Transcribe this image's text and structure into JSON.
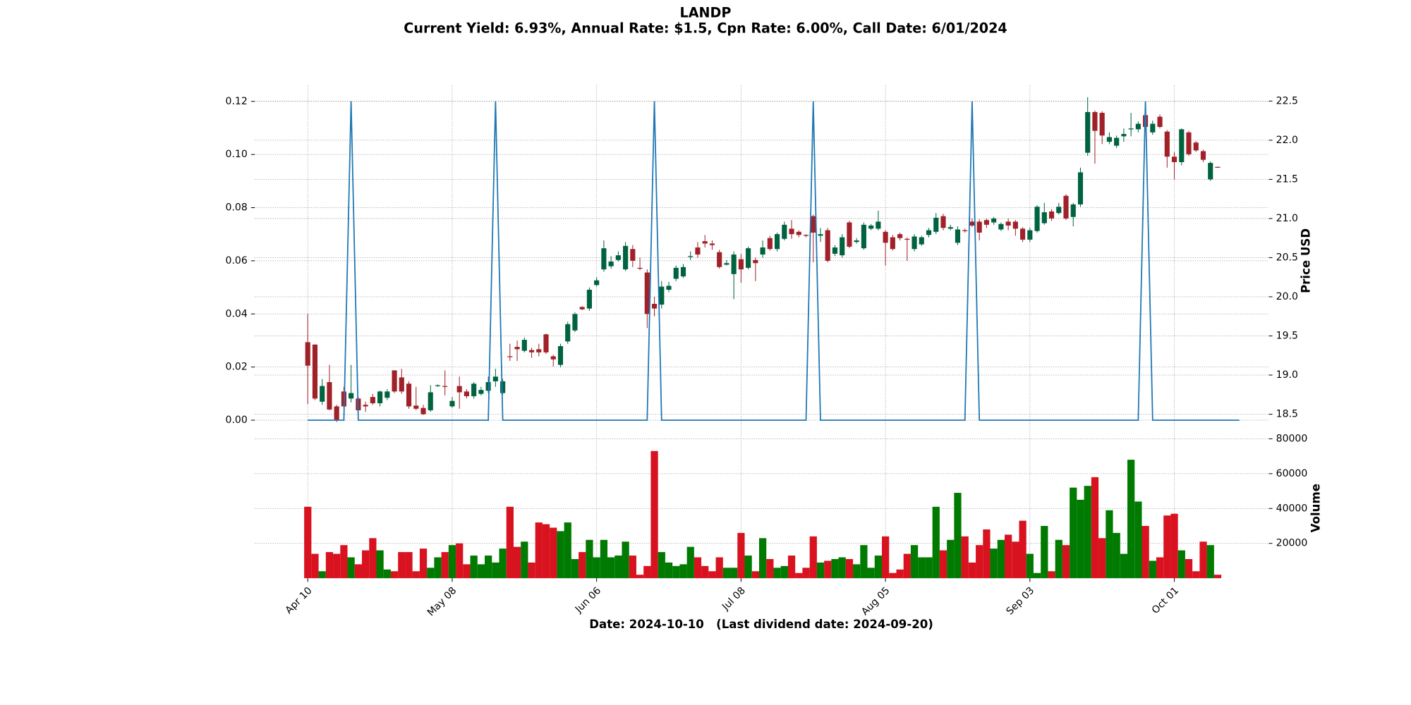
{
  "chart_data": {
    "type": "candlestick",
    "title": "LANDP",
    "subtitle": "Current Yield: 6.93%, Annual Rate: $1.5, Cpn Rate: 6.00%, Call Date: 6/01/2024",
    "x_label": "Date: 2024-10-10   (Last dividend date: 2024-09-20)",
    "y2_label": "Price USD",
    "volume_label": "Volume",
    "grid": true,
    "categories": [
      "Apr 10",
      null,
      null,
      null,
      null,
      null,
      null,
      null,
      null,
      null,
      null,
      null,
      null,
      null,
      null,
      null,
      null,
      null,
      null,
      null,
      "May 08",
      null,
      null,
      null,
      null,
      null,
      null,
      null,
      null,
      null,
      null,
      null,
      null,
      null,
      null,
      null,
      null,
      null,
      null,
      null,
      "Jun 06",
      null,
      null,
      null,
      null,
      null,
      null,
      null,
      null,
      null,
      null,
      null,
      null,
      null,
      null,
      null,
      null,
      null,
      null,
      null,
      "Jul 08",
      null,
      null,
      null,
      null,
      null,
      null,
      null,
      null,
      null,
      null,
      null,
      null,
      null,
      null,
      null,
      null,
      null,
      null,
      null,
      "Aug 05",
      null,
      null,
      null,
      null,
      null,
      null,
      null,
      null,
      null,
      null,
      null,
      null,
      null,
      null,
      null,
      null,
      null,
      null,
      null,
      "Sep 03",
      null,
      null,
      null,
      null,
      null,
      null,
      null,
      null,
      null,
      null,
      null,
      null,
      null,
      null,
      null,
      null,
      null,
      null,
      null,
      "Oct 01",
      null,
      null,
      null,
      null,
      null,
      null
    ],
    "open": [
      19.42,
      19.39,
      18.66,
      18.91,
      18.6,
      18.79,
      18.7,
      18.7,
      18.62,
      18.72,
      18.64,
      18.71,
      19.06,
      18.97,
      18.89,
      18.61,
      18.58,
      18.55,
      18.86,
      18.86,
      18.6,
      18.86,
      18.79,
      18.73,
      18.76,
      18.8,
      18.92,
      18.77,
      19.24,
      19.36,
      19.31,
      19.32,
      19.33,
      19.52,
      19.24,
      19.13,
      19.43,
      19.57,
      19.87,
      19.85,
      20.15,
      20.35,
      20.39,
      20.47,
      20.35,
      20.61,
      20.37,
      20.31,
      19.91,
      19.9,
      20.09,
      20.23,
      20.26,
      20.51,
      20.63,
      20.71,
      20.68,
      20.57,
      20.41,
      20.29,
      20.48,
      20.37,
      20.47,
      20.54,
      20.75,
      20.61,
      20.74,
      20.87,
      20.83,
      20.79,
      21.03,
      20.78,
      20.85,
      20.55,
      20.53,
      20.95,
      20.7,
      20.62,
      20.87,
      20.87,
      20.83,
      20.76,
      20.8,
      20.74,
      20.61,
      20.67,
      20.79,
      20.83,
      21.03,
      20.87,
      20.69,
      20.85,
      20.96,
      20.96,
      20.98,
      20.95,
      20.86,
      20.96,
      20.96,
      20.87,
      20.73,
      20.84,
      20.94,
      21.09,
      21.07,
      21.29,
      21.02,
      21.18,
      21.84,
      22.36,
      22.35,
      21.98,
      21.93,
      22.05,
      22.14,
      22.14,
      22.32,
      22.1,
      22.3,
      22.11,
      21.79,
      21.72,
      22.1,
      21.97,
      21.86,
      21.5,
      21.66
    ],
    "high": [
      19.78,
      19.39,
      18.95,
      19.13,
      18.62,
      18.85,
      19.13,
      18.72,
      18.66,
      18.76,
      18.8,
      18.82,
      19.06,
      19.08,
      18.92,
      18.85,
      18.62,
      18.87,
      18.88,
      19.06,
      18.72,
      18.98,
      18.82,
      18.91,
      18.85,
      18.98,
      19.08,
      18.95,
      19.4,
      19.44,
      19.48,
      19.35,
      19.4,
      19.53,
      19.26,
      19.4,
      19.68,
      19.8,
      19.88,
      20.12,
      20.25,
      20.72,
      20.52,
      20.58,
      20.7,
      20.66,
      20.5,
      20.35,
      20.0,
      20.2,
      20.19,
      20.4,
      20.42,
      20.58,
      20.7,
      20.79,
      20.72,
      20.6,
      20.47,
      20.58,
      20.55,
      20.64,
      20.5,
      20.72,
      20.78,
      20.82,
      20.96,
      20.98,
      20.85,
      20.8,
      21.05,
      20.88,
      20.88,
      20.66,
      20.8,
      20.97,
      20.75,
      20.95,
      20.93,
      21.1,
      20.85,
      20.79,
      20.82,
      20.76,
      20.8,
      20.78,
      20.88,
      21.07,
      21.06,
      20.92,
      20.9,
      20.87,
      21.0,
      20.99,
      21.0,
      21.02,
      20.95,
      21.0,
      20.98,
      20.89,
      20.88,
      21.17,
      21.2,
      21.12,
      21.2,
      21.31,
      21.2,
      21.65,
      22.55,
      22.38,
      22.37,
      22.1,
      22.06,
      22.15,
      22.35,
      22.24,
      22.35,
      22.25,
      22.33,
      22.13,
      21.85,
      22.15,
      22.12,
      21.99,
      21.88,
      21.73,
      21.66
    ],
    "low": [
      18.63,
      18.68,
      18.62,
      18.55,
      18.4,
      18.58,
      18.65,
      18.52,
      18.53,
      18.62,
      18.6,
      18.68,
      18.77,
      18.76,
      18.57,
      18.55,
      18.49,
      18.53,
      18.85,
      18.74,
      18.58,
      18.57,
      18.7,
      18.7,
      18.74,
      18.77,
      18.85,
      18.75,
      19.18,
      19.18,
      19.29,
      19.22,
      19.24,
      19.27,
      19.11,
      19.1,
      19.4,
      19.55,
      19.83,
      19.82,
      20.13,
      20.32,
      20.36,
      20.45,
      20.33,
      20.38,
      20.34,
      19.6,
      19.75,
      19.85,
      20.06,
      20.2,
      20.24,
      20.47,
      20.5,
      20.63,
      20.6,
      20.36,
      20.4,
      19.97,
      20.18,
      20.35,
      20.2,
      20.5,
      20.59,
      20.58,
      20.72,
      20.74,
      20.76,
      20.76,
      20.44,
      20.7,
      20.44,
      20.52,
      20.5,
      20.62,
      20.68,
      20.6,
      20.85,
      20.85,
      20.4,
      20.59,
      20.72,
      20.46,
      20.58,
      20.65,
      20.76,
      20.8,
      20.85,
      20.85,
      20.66,
      20.82,
      20.89,
      20.72,
      20.88,
      20.92,
      20.84,
      20.85,
      20.78,
      20.7,
      20.7,
      20.82,
      20.92,
      20.97,
      21.05,
      20.98,
      20.9,
      21.15,
      21.8,
      21.7,
      21.95,
      21.95,
      21.9,
      21.98,
      22.05,
      22.1,
      22.15,
      22.07,
      22.15,
      21.65,
      21.5,
      21.68,
      21.8,
      21.85,
      21.72,
      21.48,
      21.65
    ],
    "close": [
      19.12,
      18.7,
      18.86,
      18.56,
      18.42,
      18.6,
      18.77,
      18.55,
      18.6,
      18.64,
      18.79,
      18.79,
      18.79,
      18.79,
      18.6,
      18.57,
      18.5,
      18.78,
      18.87,
      18.85,
      18.67,
      18.78,
      18.73,
      18.89,
      18.81,
      18.91,
      18.98,
      18.92,
      19.23,
      19.33,
      19.45,
      19.29,
      19.29,
      19.29,
      19.2,
      19.37,
      19.65,
      19.78,
      19.84,
      20.09,
      20.21,
      20.62,
      20.45,
      20.53,
      20.65,
      20.46,
      20.36,
      19.78,
      19.85,
      20.13,
      20.14,
      20.37,
      20.38,
      20.52,
      20.54,
      20.68,
      20.66,
      20.38,
      20.43,
      20.54,
      20.35,
      20.62,
      20.43,
      20.63,
      20.61,
      20.8,
      20.92,
      20.8,
      20.79,
      20.78,
      20.82,
      20.8,
      20.46,
      20.63,
      20.76,
      20.64,
      20.72,
      20.92,
      20.91,
      20.96,
      20.69,
      20.61,
      20.75,
      20.73,
      20.77,
      20.76,
      20.85,
      21.01,
      20.88,
      20.89,
      20.86,
      20.84,
      20.91,
      20.82,
      20.92,
      21.0,
      20.93,
      20.91,
      20.87,
      20.73,
      20.85,
      21.15,
      21.08,
      21.0,
      21.15,
      21.0,
      21.18,
      21.59,
      22.36,
      22.12,
      22.06,
      22.04,
      22.03,
      22.08,
      22.15,
      22.21,
      22.17,
      22.21,
      22.17,
      21.79,
      21.72,
      22.14,
      21.82,
      21.87,
      21.75,
      21.71,
      21.65
    ],
    "up_color": "#006340",
    "down_color": "#a02128",
    "volume": [
      41000,
      14000,
      4000,
      15000,
      14000,
      19000,
      12000,
      8000,
      16000,
      23000,
      16000,
      5000,
      4000,
      15000,
      15000,
      4000,
      17000,
      6000,
      12000,
      15000,
      19000,
      20000,
      8000,
      13000,
      8000,
      13000,
      9000,
      17000,
      41000,
      18000,
      21000,
      9000,
      32000,
      31000,
      29000,
      27000,
      32000,
      11000,
      15000,
      22000,
      12000,
      22000,
      12000,
      13000,
      21000,
      13000,
      2000,
      7000,
      73000,
      15000,
      9000,
      7000,
      8000,
      18000,
      12000,
      7000,
      4000,
      12000,
      6000,
      6000,
      26000,
      13000,
      4000,
      23000,
      11000,
      6000,
      7000,
      13000,
      3000,
      6000,
      24000,
      9000,
      10000,
      11000,
      12000,
      11000,
      8000,
      19000,
      6000,
      13000,
      24000,
      3000,
      5000,
      14000,
      19000,
      12000,
      12000,
      41000,
      16000,
      22000,
      49000,
      24000,
      9000,
      19000,
      28000,
      17000,
      22000,
      25000,
      21000,
      33000,
      14000,
      3000,
      30000,
      4000,
      22000,
      19000,
      52000,
      45000,
      53000,
      58000,
      23000,
      39000,
      26000,
      14000,
      68000,
      44000,
      30000,
      10000,
      12000,
      36000,
      37000,
      16000,
      11000,
      4000,
      21000,
      19000,
      2000
    ],
    "volume_up_color": "#007a00",
    "volume_down_color": "#d8121f",
    "volume_ylim": [
      0,
      80000
    ],
    "volume_yticks": [
      20000,
      40000,
      60000,
      80000
    ],
    "dividend": {
      "color": "#1f77b4",
      "values": [
        0,
        0,
        0,
        0,
        0,
        0,
        0.12,
        0,
        0,
        0,
        0,
        0,
        0,
        0,
        0,
        0,
        0,
        0,
        0,
        0,
        0,
        0,
        0,
        0,
        0,
        0,
        0.12,
        0,
        0,
        0,
        0,
        0,
        0,
        0,
        0,
        0,
        0,
        0,
        0,
        0,
        0,
        0,
        0,
        0,
        0,
        0,
        0,
        0,
        0.12,
        0,
        0,
        0,
        0,
        0,
        0,
        0,
        0,
        0,
        0,
        0,
        0,
        0,
        0,
        0,
        0,
        0,
        0,
        0,
        0,
        0,
        0.12,
        0,
        0,
        0,
        0,
        0,
        0,
        0,
        0,
        0,
        0,
        0,
        0,
        0,
        0,
        0,
        0,
        0,
        0,
        0,
        0,
        0,
        0.12,
        0,
        0,
        0,
        0,
        0,
        0,
        0,
        0,
        0,
        0,
        0,
        0,
        0,
        0,
        0,
        0,
        0,
        0,
        0,
        0,
        0,
        0,
        0,
        0.12,
        0,
        0,
        0,
        0,
        0,
        0,
        0,
        0,
        0,
        0,
        0,
        0,
        0
      ]
    },
    "ylim": [
      -0.006,
      0.126
    ],
    "yticks": [
      {
        "value": 0,
        "label": "0.00"
      },
      0.02,
      0.04,
      0.06,
      0.08,
      {
        "value": 0.1,
        "label": "0.10"
      },
      0.12
    ],
    "y2lim": [
      18.22,
      22.7
    ],
    "y2ticks": [
      18.5,
      {
        "value": 19,
        "label": "19.0"
      },
      19.5,
      {
        "value": 20,
        "label": "20.0"
      },
      20.5,
      {
        "value": 21,
        "label": "21.0"
      },
      21.5,
      {
        "value": 22,
        "label": "22.0"
      },
      22.5
    ]
  }
}
